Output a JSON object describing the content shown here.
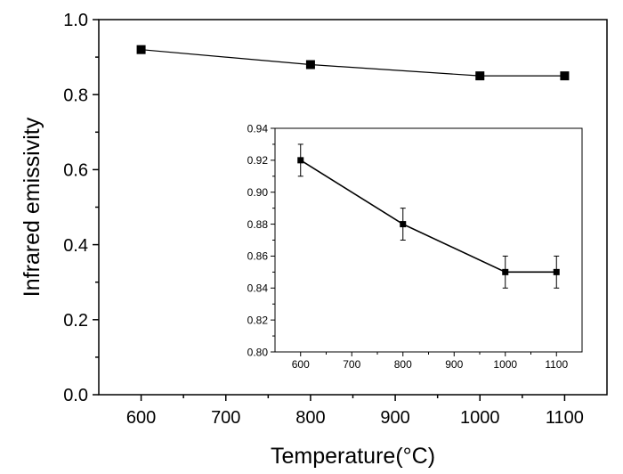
{
  "chart_data": [
    {
      "id": "main",
      "type": "line",
      "title": "",
      "xlabel": "Temperature(°C)",
      "ylabel": "Infrared emissivity",
      "xlim": [
        550,
        1150
      ],
      "ylim": [
        0.0,
        1.0
      ],
      "xticks": [
        600,
        700,
        800,
        900,
        1000,
        1100
      ],
      "xtick_labels": [
        "600",
        "700",
        "800",
        "900",
        "1000",
        "1100"
      ],
      "yticks": [
        0.0,
        0.2,
        0.4,
        0.6,
        0.8,
        1.0
      ],
      "ytick_labels": [
        "0.0",
        "0.2",
        "0.4",
        "0.6",
        "0.8",
        "1.0"
      ],
      "grid": false,
      "marker": "square",
      "color": "#000000",
      "series": [
        {
          "x": [
            600,
            800,
            1000,
            1100
          ],
          "y": [
            0.92,
            0.88,
            0.85,
            0.85
          ]
        }
      ]
    },
    {
      "id": "inset",
      "type": "line",
      "title": "",
      "xlabel": "",
      "ylabel": "",
      "xlim": [
        550,
        1150
      ],
      "ylim": [
        0.8,
        0.94
      ],
      "xticks": [
        600,
        700,
        800,
        900,
        1000,
        1100
      ],
      "xtick_labels": [
        "600",
        "700",
        "800",
        "900",
        "1000",
        "1100"
      ],
      "yticks": [
        0.8,
        0.82,
        0.84,
        0.86,
        0.88,
        0.9,
        0.92,
        0.94
      ],
      "ytick_labels": [
        "0.80",
        "0.82",
        "0.84",
        "0.86",
        "0.88",
        "0.90",
        "0.92",
        "0.94"
      ],
      "grid": false,
      "marker": "square",
      "color": "#000000",
      "series": [
        {
          "x": [
            600,
            800,
            1000,
            1100
          ],
          "y": [
            0.92,
            0.88,
            0.85,
            0.85
          ],
          "error": [
            0.01,
            0.01,
            0.01,
            0.01
          ]
        }
      ]
    }
  ]
}
